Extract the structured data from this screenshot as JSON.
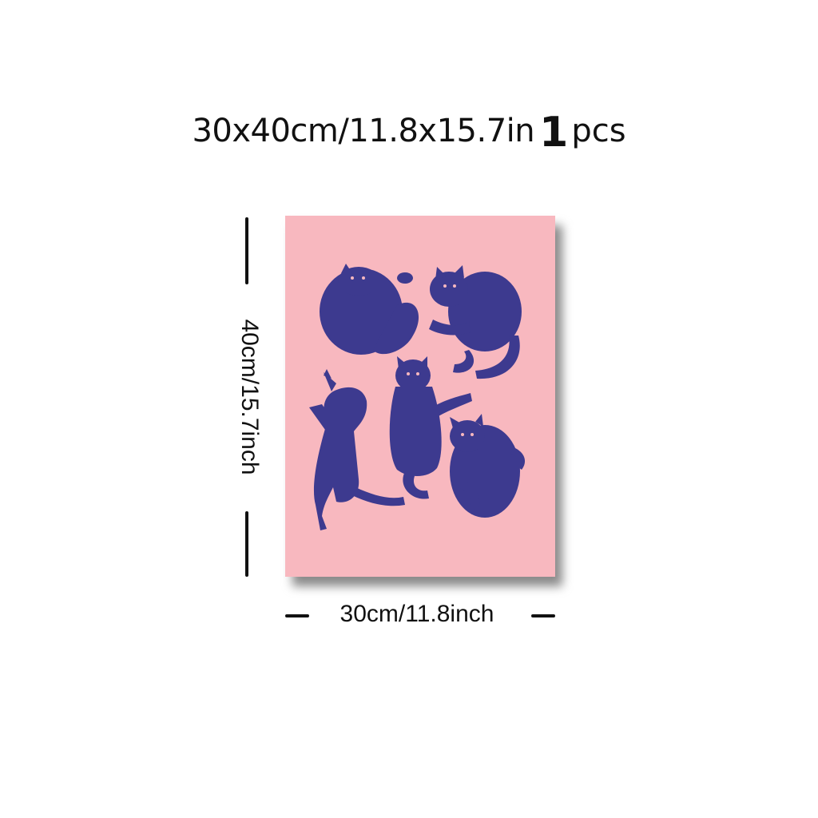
{
  "headline": {
    "size_text": "30x40cm/11.8x15.7in",
    "quantity": "1",
    "unit": "pcs"
  },
  "dimensions": {
    "height_label": "40cm/15.7inch",
    "width_label": "30cm/11.8inch"
  },
  "poster": {
    "subject": "five blue cats illustration",
    "background_color": "#f8b8bf",
    "figure_color": "#3d3a8f",
    "cat_count": 5
  }
}
